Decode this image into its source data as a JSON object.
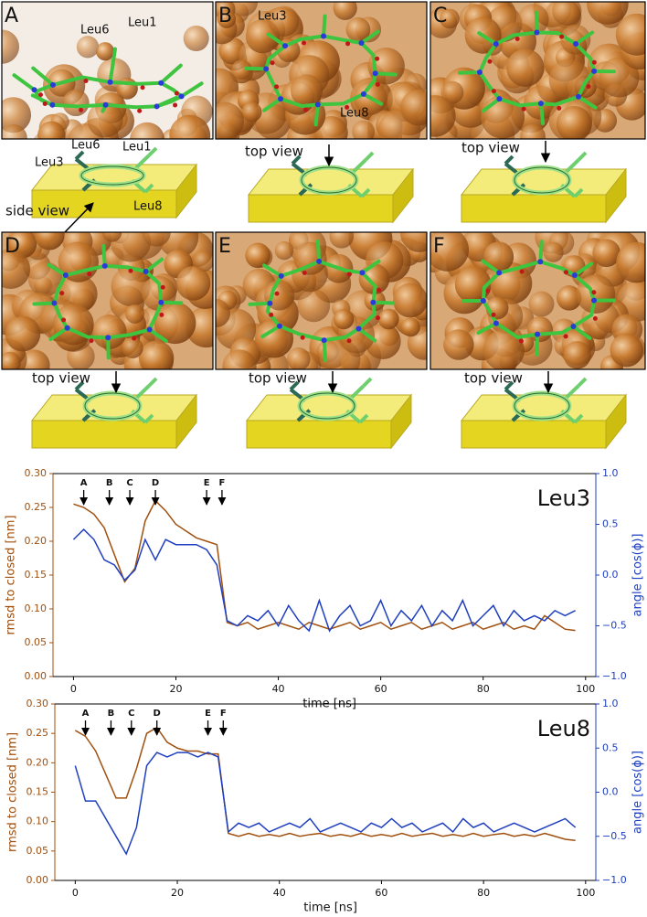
{
  "panels": [
    {
      "label": "A",
      "image_labels": [
        "Leu6",
        "Leu1"
      ],
      "view": "side view",
      "diagram_labels": [
        "Leu6",
        "Leu1",
        "Leu3",
        "Leu8"
      ]
    },
    {
      "label": "B",
      "image_labels": [
        "Leu3",
        "Leu8"
      ],
      "view": "top view"
    },
    {
      "label": "C",
      "view": "top view"
    },
    {
      "label": "D",
      "view": "top view"
    },
    {
      "label": "E",
      "view": "top view"
    },
    {
      "label": "F",
      "view": "top view"
    }
  ],
  "chart_data": [
    {
      "type": "line",
      "title": "Leu3",
      "x_label": "time [ns]",
      "y_label": "rmsd to closed [nm]",
      "y2_label": "angle [cos(ϕ)]",
      "x": [
        0,
        2,
        4,
        6,
        8,
        10,
        12,
        14,
        16,
        18,
        20,
        22,
        24,
        26,
        28,
        30,
        32,
        34,
        36,
        38,
        40,
        42,
        44,
        46,
        48,
        50,
        52,
        54,
        56,
        58,
        60,
        62,
        64,
        66,
        68,
        70,
        72,
        74,
        76,
        78,
        80,
        82,
        84,
        86,
        88,
        90,
        92,
        94,
        96,
        98
      ],
      "series": [
        {
          "color": "#a0500f",
          "values": [
            0.255,
            0.25,
            0.24,
            0.22,
            0.18,
            0.14,
            0.16,
            0.23,
            0.26,
            0.245,
            0.225,
            0.215,
            0.205,
            0.2,
            0.195,
            0.08,
            0.075,
            0.08,
            0.07,
            0.075,
            0.08,
            0.075,
            0.07,
            0.08,
            0.075,
            0.07,
            0.075,
            0.08,
            0.07,
            0.075,
            0.08,
            0.07,
            0.075,
            0.08,
            0.07,
            0.075,
            0.08,
            0.07,
            0.075,
            0.08,
            0.07,
            0.075,
            0.08,
            0.07,
            0.075,
            0.07,
            0.09,
            0.08,
            0.07,
            0.068
          ]
        },
        {
          "color": "#1f3fbf",
          "axis": "y2",
          "values": [
            0.35,
            0.45,
            0.35,
            0.15,
            0.1,
            -0.05,
            0.05,
            0.35,
            0.15,
            0.35,
            0.3,
            0.3,
            0.3,
            0.25,
            0.1,
            -0.45,
            -0.5,
            -0.4,
            -0.45,
            -0.35,
            -0.5,
            -0.3,
            -0.45,
            -0.55,
            -0.25,
            -0.55,
            -0.4,
            -0.3,
            -0.5,
            -0.45,
            -0.25,
            -0.5,
            -0.35,
            -0.45,
            -0.3,
            -0.5,
            -0.35,
            -0.45,
            -0.25,
            -0.5,
            -0.4,
            -0.3,
            -0.5,
            -0.35,
            -0.45,
            -0.4,
            -0.45,
            -0.35,
            -0.4,
            -0.35
          ]
        }
      ],
      "xlim": [
        -4,
        102
      ],
      "xticks": [
        0,
        20,
        40,
        60,
        80,
        100
      ],
      "ylim": [
        0,
        0.3
      ],
      "yticks": [
        {
          "value": 0,
          "label": "0.00"
        },
        {
          "value": 0.05,
          "label": "0.05"
        },
        {
          "value": 0.1,
          "label": "0.10"
        },
        {
          "value": 0.15,
          "label": "0.15"
        },
        {
          "value": 0.2,
          "label": "0.20"
        },
        {
          "value": 0.25,
          "label": "0.25"
        },
        {
          "value": 0.3,
          "label": "0.30"
        }
      ],
      "y2lim": [
        -1,
        1
      ],
      "y2ticks": [
        {
          "value": -1,
          "label": "−1.0"
        },
        {
          "value": -0.5,
          "label": "−0.5"
        },
        {
          "value": 0,
          "label": "0.0"
        },
        {
          "value": 0.5,
          "label": "0.5"
        },
        {
          "value": 1,
          "label": "1.0"
        }
      ],
      "annotations": [
        {
          "text": "A",
          "x": 2
        },
        {
          "text": "B",
          "x": 7
        },
        {
          "text": "C",
          "x": 11
        },
        {
          "text": "D",
          "x": 16
        },
        {
          "text": "E",
          "x": 26
        },
        {
          "text": "F",
          "x": 29
        }
      ]
    },
    {
      "type": "line",
      "title": "Leu8",
      "x_label": "time [ns]",
      "y_label": "rmsd to closed [nm]",
      "y2_label": "angle [cos(ϕ)]",
      "x": [
        0,
        2,
        4,
        6,
        8,
        10,
        12,
        14,
        16,
        18,
        20,
        22,
        24,
        26,
        28,
        30,
        32,
        34,
        36,
        38,
        40,
        42,
        44,
        46,
        48,
        50,
        52,
        54,
        56,
        58,
        60,
        62,
        64,
        66,
        68,
        70,
        72,
        74,
        76,
        78,
        80,
        82,
        84,
        86,
        88,
        90,
        92,
        94,
        96,
        98
      ],
      "series": [
        {
          "color": "#a0500f",
          "values": [
            0.255,
            0.245,
            0.22,
            0.18,
            0.14,
            0.14,
            0.19,
            0.25,
            0.26,
            0.235,
            0.225,
            0.22,
            0.22,
            0.215,
            0.215,
            0.08,
            0.075,
            0.08,
            0.075,
            0.078,
            0.075,
            0.08,
            0.075,
            0.078,
            0.08,
            0.075,
            0.078,
            0.075,
            0.08,
            0.075,
            0.078,
            0.075,
            0.08,
            0.075,
            0.078,
            0.08,
            0.075,
            0.078,
            0.075,
            0.08,
            0.075,
            0.078,
            0.08,
            0.075,
            0.078,
            0.075,
            0.08,
            0.075,
            0.07,
            0.068
          ]
        },
        {
          "color": "#1f3fbf",
          "axis": "y2",
          "values": [
            0.3,
            -0.1,
            -0.1,
            -0.3,
            -0.5,
            -0.7,
            -0.4,
            0.3,
            0.45,
            0.4,
            0.45,
            0.45,
            0.4,
            0.45,
            0.4,
            -0.45,
            -0.35,
            -0.4,
            -0.35,
            -0.45,
            -0.4,
            -0.35,
            -0.4,
            -0.3,
            -0.45,
            -0.4,
            -0.35,
            -0.4,
            -0.45,
            -0.35,
            -0.4,
            -0.3,
            -0.4,
            -0.35,
            -0.45,
            -0.4,
            -0.35,
            -0.45,
            -0.3,
            -0.4,
            -0.35,
            -0.45,
            -0.4,
            -0.35,
            -0.4,
            -0.45,
            -0.4,
            -0.35,
            -0.3,
            -0.4
          ]
        }
      ],
      "xlim": [
        -4,
        102
      ],
      "xticks": [
        0,
        20,
        40,
        60,
        80,
        100
      ],
      "ylim": [
        0,
        0.3
      ],
      "yticks": [
        {
          "value": 0,
          "label": "0.00"
        },
        {
          "value": 0.05,
          "label": "0.05"
        },
        {
          "value": 0.1,
          "label": "0.10"
        },
        {
          "value": 0.15,
          "label": "0.15"
        },
        {
          "value": 0.2,
          "label": "0.20"
        },
        {
          "value": 0.25,
          "label": "0.25"
        },
        {
          "value": 0.3,
          "label": "0.30"
        }
      ],
      "y2lim": [
        -1,
        1
      ],
      "y2ticks": [
        {
          "value": -1,
          "label": "−1.0"
        },
        {
          "value": -0.5,
          "label": "−0.5"
        },
        {
          "value": 0,
          "label": "0.0"
        },
        {
          "value": 0.5,
          "label": "0.5"
        },
        {
          "value": 1,
          "label": "1.0"
        }
      ],
      "annotations": [
        {
          "text": "A",
          "x": 2
        },
        {
          "text": "B",
          "x": 7
        },
        {
          "text": "C",
          "x": 11
        },
        {
          "text": "D",
          "x": 16
        },
        {
          "text": "E",
          "x": 26
        },
        {
          "text": "F",
          "x": 29
        }
      ]
    }
  ]
}
